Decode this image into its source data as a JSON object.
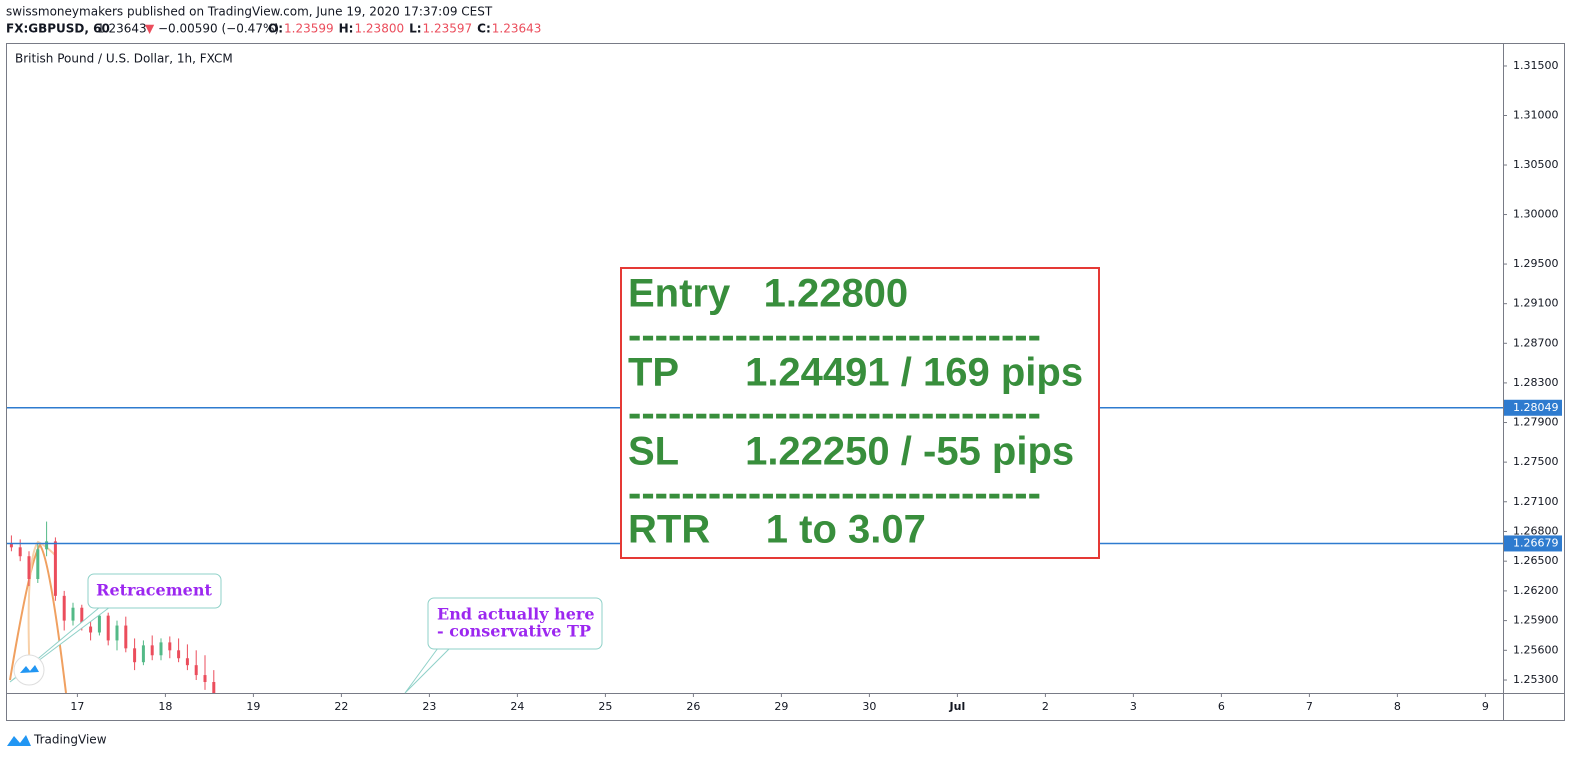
{
  "header": {
    "author_line": "swissmoneymakers published on TradingView.com, June 19, 2020 17:37:09 CEST",
    "symbol": "FX:GBPUSD, 60",
    "last": "1.23643",
    "arrow": "▼",
    "change": "−0.00590 (−0.47%)",
    "ohlc": [
      {
        "label": "O:",
        "value": "1.23599"
      },
      {
        "label": "H:",
        "value": "1.23800"
      },
      {
        "label": "L:",
        "value": "1.23597"
      },
      {
        "label": "C:",
        "value": "1.23643"
      }
    ]
  },
  "chart_data": {
    "type": "candlestick",
    "title": "British Pound / U.S. Dollar, 1h, FXCM",
    "x": [
      -0.75,
      -0.65,
      -0.55,
      -0.45,
      -0.35,
      -0.25,
      -0.15,
      -0.05,
      0.05,
      0.15,
      0.25,
      0.35,
      0.45,
      0.55,
      0.65,
      0.75,
      0.85,
      0.95,
      1.05,
      1.15,
      1.25,
      1.35,
      1.45,
      1.55
    ],
    "open": [
      1.2668,
      1.2664,
      1.2655,
      1.2632,
      1.2662,
      1.267,
      1.2615,
      1.259,
      1.2603,
      1.2584,
      1.2578,
      1.2595,
      1.257,
      1.2585,
      1.2562,
      1.2548,
      1.2565,
      1.2555,
      1.2568,
      1.256,
      1.2552,
      1.2545,
      1.2535,
      1.2528
    ],
    "high": [
      1.2676,
      1.2672,
      1.266,
      1.2668,
      1.269,
      1.2674,
      1.262,
      1.2608,
      1.2606,
      1.2595,
      1.26,
      1.2598,
      1.259,
      1.2594,
      1.2572,
      1.257,
      1.2575,
      1.2572,
      1.2574,
      1.2572,
      1.2566,
      1.256,
      1.2555,
      1.254
    ],
    "low": [
      1.266,
      1.265,
      1.2625,
      1.2628,
      1.2655,
      1.261,
      1.258,
      1.2585,
      1.258,
      1.257,
      1.2575,
      1.2565,
      1.256,
      1.2558,
      1.254,
      1.2545,
      1.255,
      1.255,
      1.2552,
      1.2548,
      1.254,
      1.253,
      1.252,
      1.2505
    ],
    "close": [
      1.2664,
      1.2655,
      1.2632,
      1.2662,
      1.267,
      1.2615,
      1.259,
      1.2603,
      1.2584,
      1.2578,
      1.2595,
      1.257,
      1.2585,
      1.2562,
      1.2548,
      1.2565,
      1.2555,
      1.2568,
      1.256,
      1.2552,
      1.2545,
      1.2535,
      1.2528,
      1.251
    ],
    "up_color": "#53b987",
    "down_color": "#eb4d5c",
    "xlim": [
      -0.8,
      16.2
    ],
    "xticks": [
      {
        "value": 0,
        "label": "17"
      },
      {
        "value": 1,
        "label": "18"
      },
      {
        "value": 2,
        "label": "19"
      },
      {
        "value": 3,
        "label": "22"
      },
      {
        "value": 4,
        "label": "23"
      },
      {
        "value": 5,
        "label": "24"
      },
      {
        "value": 6,
        "label": "25"
      },
      {
        "value": 7,
        "label": "26"
      },
      {
        "value": 8,
        "label": "29"
      },
      {
        "value": 9,
        "label": "30"
      },
      {
        "value": 10,
        "label": "Jul"
      },
      {
        "value": 11,
        "label": "2"
      },
      {
        "value": 12,
        "label": "3"
      },
      {
        "value": 13,
        "label": "6"
      },
      {
        "value": 14,
        "label": "7"
      },
      {
        "value": 15,
        "label": "8"
      },
      {
        "value": 16,
        "label": "9"
      }
    ],
    "ylim": [
      1.25169,
      1.31732
    ],
    "yticks": [
      {
        "value": 1.315,
        "label": "1.31500"
      },
      {
        "value": 1.31,
        "label": "1.31000"
      },
      {
        "value": 1.305,
        "label": "1.30500"
      },
      {
        "value": 1.3,
        "label": "1.30000"
      },
      {
        "value": 1.295,
        "label": "1.29500"
      },
      {
        "value": 1.291,
        "label": "1.29100"
      },
      {
        "value": 1.287,
        "label": "1.28700"
      },
      {
        "value": 1.283,
        "label": "1.28300"
      },
      {
        "value": 1.279,
        "label": "1.27900"
      },
      {
        "value": 1.275,
        "label": "1.27500"
      },
      {
        "value": 1.271,
        "label": "1.27100"
      },
      {
        "value": 1.268,
        "label": "1.26800"
      },
      {
        "value": 1.265,
        "label": "1.26500"
      },
      {
        "value": 1.262,
        "label": "1.26200"
      },
      {
        "value": 1.259,
        "label": "1.25900"
      },
      {
        "value": 1.256,
        "label": "1.25600"
      },
      {
        "value": 1.253,
        "label": "1.25300"
      }
    ],
    "hlines": [
      1.28049,
      1.26679
    ],
    "hline_color": "#2e7bcf",
    "annotations": [
      "Retracement",
      "End actually here",
      "- conservative TP"
    ],
    "trade_box": [
      "Entry   1.22800",
      "-------------------------------",
      "TP      1.24491 / 169 pips",
      "-------------------------------",
      "SL      1.22250 / -55 pips",
      "-------------------------------",
      "RTR     1 to 3.07"
    ]
  },
  "footer": "TradingView"
}
